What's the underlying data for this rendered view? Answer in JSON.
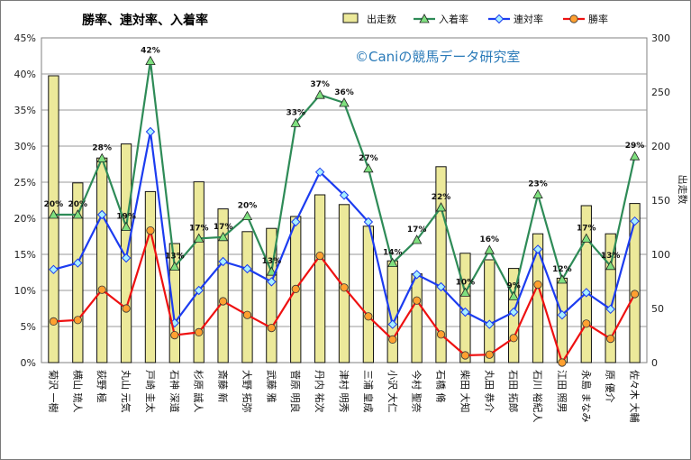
{
  "chart_data": {
    "type": "bar-line-combo",
    "title": "勝率、連対率、入着率",
    "watermark": "©Caniの競馬データ研究室",
    "categories": [
      "菊沢 一樹",
      "横山 琉人",
      "荻野 極",
      "丸山 元気",
      "戸崎 圭太",
      "石神 深道",
      "杉原 誠人",
      "斎藤 新",
      "大野 拓弥",
      "武藤 雅",
      "菅原 明良",
      "丹内 祐次",
      "津村 明秀",
      "三浦 皇成",
      "小沢 大仁",
      "今村 聖奈",
      "石橋 脩",
      "柴田 大知",
      "丸田 恭介",
      "石田 拓郎",
      "石川 裕紀人",
      "江田 照男",
      "永島 まなみ",
      "原 優介",
      "佐々木 大輔"
    ],
    "series": [
      {
        "name": "出走数",
        "type": "bar",
        "axis": "right",
        "color": "#ece99a",
        "values": [
          265,
          166,
          189,
          202,
          158,
          110,
          167,
          142,
          121,
          124,
          135,
          155,
          146,
          126,
          94,
          82,
          181,
          101,
          95,
          87,
          119,
          78,
          145,
          119,
          147
        ]
      },
      {
        "name": "入着率",
        "type": "line",
        "axis": "left",
        "color": "#2e8b57",
        "marker": "triangle",
        "values": [
          20.5,
          20.5,
          28.3,
          18.8,
          41.8,
          13.3,
          17.2,
          17.4,
          20.3,
          12.6,
          33.2,
          37.1,
          36.0,
          26.9,
          13.8,
          17.0,
          21.5,
          9.7,
          15.6,
          9.2,
          23.3,
          11.5,
          17.2,
          13.4,
          28.6
        ]
      },
      {
        "name": "連対率",
        "type": "line",
        "axis": "left",
        "color": "#1c3cf0",
        "marker": "diamond",
        "values": [
          12.9,
          13.8,
          20.5,
          14.5,
          32.0,
          5.5,
          10.0,
          14.0,
          13.0,
          11.2,
          19.5,
          26.4,
          23.2,
          19.5,
          5.3,
          12.2,
          10.5,
          7.0,
          5.3,
          7.0,
          15.7,
          6.6,
          9.7,
          7.4,
          19.6
        ]
      },
      {
        "name": "勝率",
        "type": "line",
        "axis": "left",
        "color": "#ee1111",
        "marker": "circle",
        "values": [
          5.7,
          5.9,
          10.1,
          7.5,
          18.3,
          3.8,
          4.2,
          8.5,
          6.6,
          4.8,
          10.2,
          14.8,
          10.4,
          6.4,
          3.2,
          8.6,
          3.9,
          1.0,
          1.1,
          3.4,
          10.8,
          0.0,
          5.4,
          3.3,
          9.5
        ]
      }
    ],
    "data_labels": {
      "series": "入着率",
      "labels": [
        "20%",
        "20%",
        "28%",
        "19%",
        "42%",
        "13%",
        "17%",
        "17%",
        "20%",
        "13%",
        "33%",
        "37%",
        "36%",
        "27%",
        "14%",
        "17%",
        "22%",
        "10%",
        "16%",
        "9%",
        "23%",
        "12%",
        "17%",
        "13%",
        "29%"
      ]
    },
    "y_left": {
      "min": 0,
      "max": 45,
      "step": 5,
      "unit": "%"
    },
    "y_right": {
      "min": 0,
      "max": 300,
      "step": 50,
      "label": "出走数"
    },
    "legend_position": "top"
  }
}
